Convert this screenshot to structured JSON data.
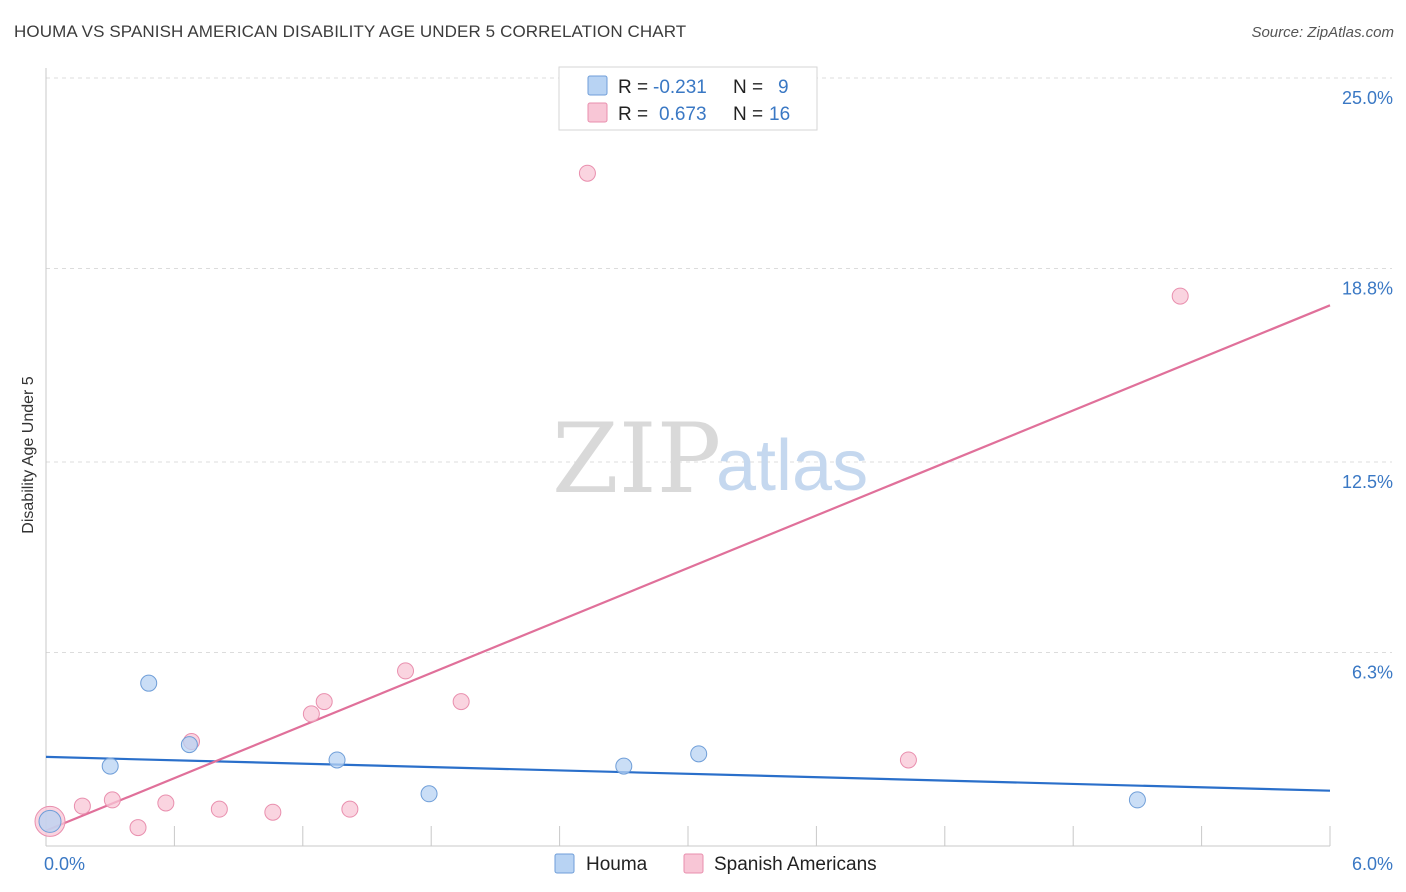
{
  "title": "HOUMA VS SPANISH AMERICAN DISABILITY AGE UNDER 5 CORRELATION CHART",
  "source": "Source: ZipAtlas.com",
  "watermark": {
    "part1": "ZIP",
    "part2": "atlas"
  },
  "colors": {
    "houma_fill": "#b8d3f3",
    "houma_stroke": "#6f9ed8",
    "houma_line": "#2a6fca",
    "spanish_fill": "#f8c6d6",
    "spanish_stroke": "#e98fae",
    "spanish_line": "#e0709a",
    "grid": "#dcdcdc",
    "tick_label": "#3a78c4"
  },
  "legend": {
    "r_label": "R =",
    "n_label": "N =",
    "houma": {
      "r": "-0.231",
      "n": "9"
    },
    "spanish": {
      "r": "0.673",
      "n": "16"
    }
  },
  "chart_data": {
    "type": "scatter",
    "title": "HOUMA VS SPANISH AMERICAN DISABILITY AGE UNDER 5 CORRELATION CHART",
    "ylabel": "Disability Age Under 5",
    "xlabel": "",
    "xlim": [
      0,
      6.0
    ],
    "ylim": [
      0,
      25.0
    ],
    "x_tick_labels": [
      "0.0%",
      "6.0%"
    ],
    "y_ticks": [
      6.3,
      12.5,
      18.8,
      25.0
    ],
    "y_tick_labels": [
      "6.3%",
      "12.5%",
      "18.8%",
      "25.0%"
    ],
    "x_minor_ticks": [
      0.6,
      1.2,
      1.8,
      2.4,
      3.0,
      3.6,
      4.2,
      4.8,
      5.4,
      6.0
    ],
    "series": [
      {
        "name": "Houma",
        "color_key": "houma",
        "points": [
          {
            "x": 0.0,
            "y": 0.8,
            "big": true
          },
          {
            "x": 0.3,
            "y": 2.6
          },
          {
            "x": 0.48,
            "y": 5.3
          },
          {
            "x": 0.67,
            "y": 3.3
          },
          {
            "x": 1.36,
            "y": 2.8
          },
          {
            "x": 1.79,
            "y": 1.7
          },
          {
            "x": 2.7,
            "y": 2.6
          },
          {
            "x": 3.05,
            "y": 3.0
          },
          {
            "x": 5.1,
            "y": 1.5
          }
        ],
        "trend": {
          "x0": 0.0,
          "y0": 2.9,
          "x1": 6.0,
          "y1": 1.8
        }
      },
      {
        "name": "Spanish Americans",
        "color_key": "spanish",
        "points": [
          {
            "x": 0.0,
            "y": 0.8,
            "big": true
          },
          {
            "x": 0.17,
            "y": 1.3
          },
          {
            "x": 0.31,
            "y": 1.5
          },
          {
            "x": 0.43,
            "y": 0.6
          },
          {
            "x": 0.56,
            "y": 1.4
          },
          {
            "x": 0.68,
            "y": 3.4
          },
          {
            "x": 0.81,
            "y": 1.2
          },
          {
            "x": 1.06,
            "y": 1.1
          },
          {
            "x": 1.24,
            "y": 4.3
          },
          {
            "x": 1.3,
            "y": 4.7
          },
          {
            "x": 1.42,
            "y": 1.2
          },
          {
            "x": 1.68,
            "y": 5.7
          },
          {
            "x": 1.94,
            "y": 4.7
          },
          {
            "x": 2.53,
            "y": 21.9
          },
          {
            "x": 4.03,
            "y": 2.8
          },
          {
            "x": 5.3,
            "y": 17.9
          }
        ],
        "trend": {
          "x0": 0.0,
          "y0": 0.5,
          "x1": 6.0,
          "y1": 17.6
        }
      }
    ]
  }
}
